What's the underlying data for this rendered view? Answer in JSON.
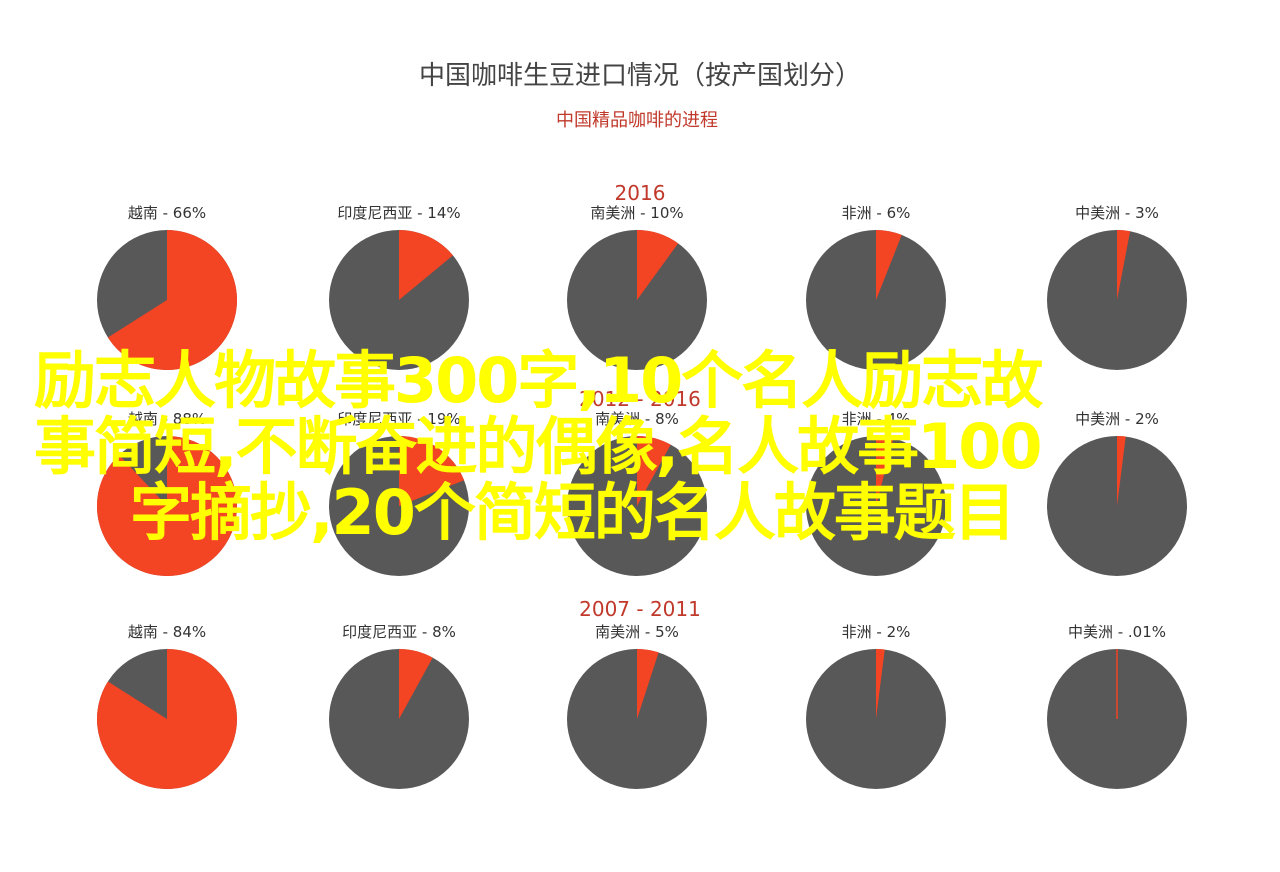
{
  "chart_data": {
    "type": "pie",
    "title": "中国咖啡生豆进口情况（按产国划分）",
    "subtitle": "中国精品咖啡的进程",
    "colors": {
      "share": "#f34424",
      "rest": "#585858",
      "title": "#444444",
      "accent": "#c0392b"
    },
    "groups": [
      {
        "period": "2016",
        "pies": [
          {
            "label": "越南 - 66%",
            "value": 66
          },
          {
            "label": "印度尼西亚 - 14%",
            "value": 14
          },
          {
            "label": "南美洲 - 10%",
            "value": 10
          },
          {
            "label": "非洲 - 6%",
            "value": 6
          },
          {
            "label": "中美洲 - 3%",
            "value": 3
          }
        ]
      },
      {
        "period": "2012 - 2016",
        "pies": [
          {
            "label": "越南 - 88%",
            "value": 88
          },
          {
            "label": "印度尼西亚 - 19%",
            "value": 19
          },
          {
            "label": "南美洲 - 8%",
            "value": 8
          },
          {
            "label": "非洲 - 4%",
            "value": 4
          },
          {
            "label": "中美洲 - 2%",
            "value": 2
          }
        ]
      },
      {
        "period": "2007 - 2011",
        "pies": [
          {
            "label": "越南 - 84%",
            "value": 84
          },
          {
            "label": "印度尼西亚 - 8%",
            "value": 8
          },
          {
            "label": "南美洲 - 5%",
            "value": 5
          },
          {
            "label": "非洲 - 2%",
            "value": 2
          },
          {
            "label": "中美洲 - .01%",
            "value": 0.01
          }
        ]
      }
    ]
  },
  "overlay": {
    "lines": [
      "励志人物故事300字,10个名人励志故",
      "事简短,不断奋进的偶像,名人故事100",
      "字摘抄,20个简短的名人故事题目"
    ],
    "color": "#ffff00"
  }
}
